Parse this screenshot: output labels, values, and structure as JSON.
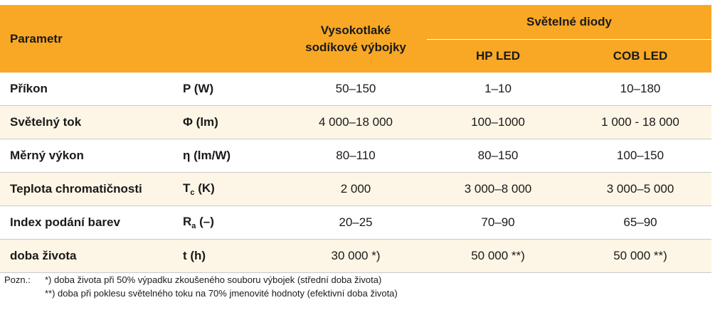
{
  "header": {
    "param": "Parametr",
    "sodium_line1": "Vysokotlaké",
    "sodium_line2": "sodíkové výbojky",
    "diody": "Světelné diody",
    "hp_led": "HP LED",
    "cob_led": "COB LED"
  },
  "rows": [
    {
      "name": "Příkon",
      "unit": "P (W)",
      "sodium": "50–150",
      "hp": "1–10",
      "cob": "10–180"
    },
    {
      "name": "Světelný tok",
      "unit": "Φ (lm)",
      "sodium": "4 000–18 000",
      "hp": "100–1000",
      "cob": "1 000 - 18 000"
    },
    {
      "name": "Měrný výkon",
      "unit": "η (lm/W)",
      "sodium": "80–110",
      "hp": "80–150",
      "cob": "100–150"
    },
    {
      "name": "Teplota chromatičnosti",
      "unit_symbol": "T",
      "unit_sub": "c",
      "unit_rest": " (K)",
      "sodium": "2 000",
      "hp": "3 000–8 000",
      "cob": "3 000–5 000"
    },
    {
      "name": "Index podání barev",
      "unit_symbol": "R",
      "unit_sub": "a",
      "unit_rest": " (–)",
      "sodium": "20–25",
      "hp": "70–90",
      "cob": "65–90"
    },
    {
      "name": "doba života",
      "unit": "t (h)",
      "sodium": "30 000 *)",
      "hp": "50 000 **)",
      "cob": "50 000 **)"
    }
  ],
  "notes": {
    "label": "Pozn.:",
    "note1": "*) doba života při 50% výpadku zkoušeného souboru výbojek (střední doba života)",
    "note2": "**) doba při poklesu světelného toku na 70% jmenovité hodnoty (efektivní doba života)"
  }
}
